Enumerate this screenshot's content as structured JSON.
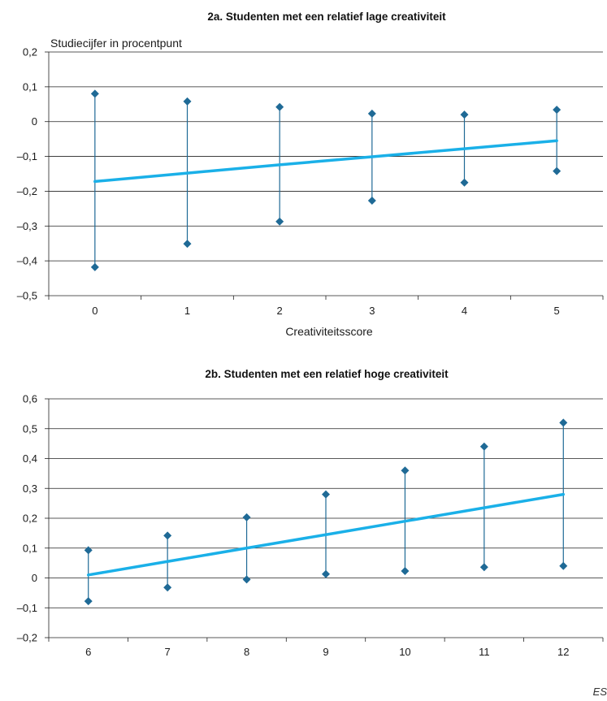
{
  "chart_data": [
    {
      "type": "line",
      "title": "2a. Studenten met een relatief lage creativiteit",
      "ylabel": "Studiecijfer in procentpunt",
      "xlabel": "Creativiteitsscore",
      "ylim": [
        -0.5,
        0.2
      ],
      "y_ticks": [
        "0,2",
        "0,1",
        "0",
        "–0,1",
        "–0,2",
        "–0,3",
        "–0,4",
        "–0,5"
      ],
      "y_tick_values": [
        0.2,
        0.1,
        0,
        -0.1,
        -0.2,
        -0.3,
        -0.4,
        -0.5
      ],
      "categories": [
        "0",
        "1",
        "2",
        "3",
        "4",
        "5"
      ],
      "grid": true,
      "series": [
        {
          "values": [
            -0.172,
            -0.148,
            -0.124,
            -0.101,
            -0.078,
            -0.055
          ]
        }
      ],
      "intervals": {
        "upper": [
          0.08,
          0.058,
          0.042,
          0.023,
          0.02,
          0.034
        ],
        "lower": [
          -0.418,
          -0.351,
          -0.287,
          -0.227,
          -0.175,
          -0.142
        ]
      },
      "colors": {
        "line": "#1ab0e8",
        "interval": "#1f6a96"
      }
    },
    {
      "type": "line",
      "title": "2b. Studenten met een relatief hoge creativiteit",
      "ylabel": "",
      "xlabel": "",
      "ylim": [
        -0.2,
        0.6
      ],
      "y_ticks": [
        "0,6",
        "0,5",
        "0,4",
        "0,3",
        "0,2",
        "0,1",
        "0",
        "–0,1",
        "–0,2"
      ],
      "y_tick_values": [
        0.6,
        0.5,
        0.4,
        0.3,
        0.2,
        0.1,
        0,
        -0.1,
        -0.2
      ],
      "categories": [
        "6",
        "7",
        "8",
        "9",
        "10",
        "11",
        "12"
      ],
      "grid": true,
      "series": [
        {
          "values": [
            0.01,
            0.055,
            0.1,
            0.145,
            0.19,
            0.235,
            0.28
          ]
        }
      ],
      "intervals": {
        "upper": [
          0.093,
          0.142,
          0.203,
          0.28,
          0.36,
          0.44,
          0.52
        ],
        "lower": [
          -0.078,
          -0.032,
          -0.005,
          0.013,
          0.023,
          0.036,
          0.04
        ]
      },
      "colors": {
        "line": "#1ab0e8",
        "interval": "#1f6a96"
      }
    }
  ],
  "source": "ES"
}
